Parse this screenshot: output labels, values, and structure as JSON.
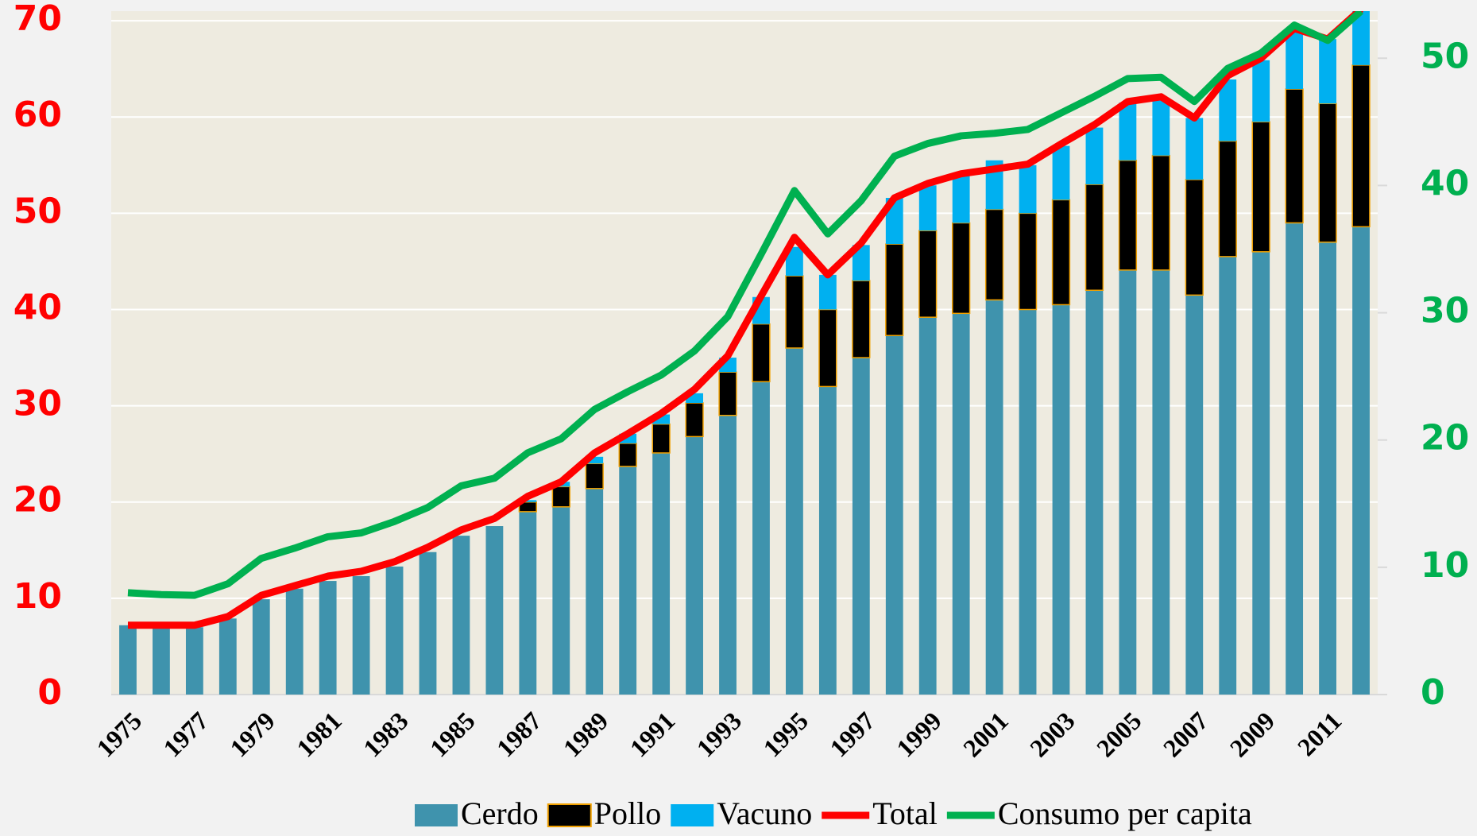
{
  "chart_data": {
    "type": "bar",
    "stacked": true,
    "categories": [
      "1975",
      null,
      "1977",
      null,
      "1979",
      null,
      "1981",
      null,
      "1983",
      null,
      "1985",
      null,
      "1987",
      null,
      "1989",
      null,
      "1991",
      null,
      "1993",
      null,
      "1995",
      null,
      "1997",
      null,
      "1999",
      null,
      "2001",
      null,
      "2003",
      null,
      "2005",
      null,
      "2007",
      null,
      "2009",
      null,
      "2011",
      null
    ],
    "series": [
      {
        "name": "Cerdo",
        "type": "bar",
        "color": "#3f93ad",
        "values": [
          7.2,
          7.0,
          7.0,
          7.9,
          9.9,
          11.0,
          11.8,
          12.3,
          13.3,
          14.8,
          16.5,
          17.5,
          19.0,
          19.5,
          21.4,
          23.7,
          25.1,
          26.8,
          29.0,
          32.5,
          36.0,
          32.0,
          35.0,
          37.3,
          39.2,
          39.6,
          41.0,
          40.0,
          40.5,
          42.0,
          44.1,
          44.1,
          41.5,
          45.5,
          46.0,
          49.0,
          47.0,
          48.6
        ]
      },
      {
        "name": "Pollo",
        "type": "bar",
        "color": "#000000",
        "edgecolor": "#f0a000",
        "values": [
          0,
          0,
          0,
          0,
          0,
          0,
          0,
          0,
          0,
          0,
          0,
          0,
          1.0,
          2.1,
          2.6,
          2.4,
          3.0,
          3.5,
          4.5,
          6.0,
          7.5,
          8.0,
          8.0,
          9.5,
          9.0,
          9.4,
          9.4,
          10.0,
          10.9,
          11.0,
          11.4,
          11.9,
          12.0,
          12.0,
          13.5,
          13.9,
          14.4,
          16.8
        ]
      },
      {
        "name": "Vacuno",
        "type": "bar",
        "color": "#00b0f0",
        "values": [
          0,
          0,
          0,
          0,
          0,
          0,
          0,
          0,
          0,
          0,
          0,
          0,
          0.2,
          0.5,
          0.7,
          1.0,
          1.0,
          1.0,
          1.5,
          2.8,
          3.0,
          3.6,
          3.7,
          4.8,
          4.7,
          5.1,
          5.1,
          5.0,
          5.6,
          5.9,
          6.0,
          6.0,
          6.4,
          6.4,
          6.4,
          6.1,
          6.7,
          5.6
        ]
      },
      {
        "name": "Total",
        "type": "line",
        "color": "#ff0000",
        "values": [
          7.2,
          7.2,
          7.2,
          8.1,
          10.3,
          11.3,
          12.3,
          12.8,
          13.8,
          15.3,
          17.1,
          18.3,
          20.6,
          22.1,
          25.1,
          27.1,
          29.2,
          31.7,
          35.2,
          41.4,
          47.5,
          43.6,
          46.9,
          51.6,
          53.1,
          54.1,
          54.6,
          55.1,
          57.2,
          59.2,
          61.6,
          62.1,
          59.9,
          64.3,
          66.1,
          69.2,
          68.1,
          71.2
        ]
      },
      {
        "name": "Consumo per capita",
        "type": "line",
        "axis": "y2",
        "color": "#00b050",
        "values": [
          8.0,
          7.85,
          7.8,
          8.7,
          10.7,
          11.5,
          12.4,
          12.7,
          13.6,
          14.7,
          16.4,
          17.0,
          19.0,
          20.1,
          22.4,
          23.8,
          25.1,
          27.0,
          29.7,
          34.6,
          39.6,
          36.2,
          38.8,
          42.3,
          43.3,
          43.9,
          44.1,
          44.4,
          45.7,
          47.0,
          48.4,
          48.5,
          46.6,
          49.2,
          50.4,
          52.6,
          51.4,
          53.7
        ]
      }
    ],
    "ylim": [
      0,
      71
    ],
    "yticks": [
      0,
      10,
      20,
      30,
      40,
      50,
      60,
      70
    ],
    "ycolor": "#ff0000",
    "y2lim": [
      0,
      53.7
    ],
    "y2ticks": [
      0,
      10,
      20,
      30,
      40,
      50
    ],
    "y2color": "#00b050",
    "grid": true,
    "legend": "bottom"
  }
}
